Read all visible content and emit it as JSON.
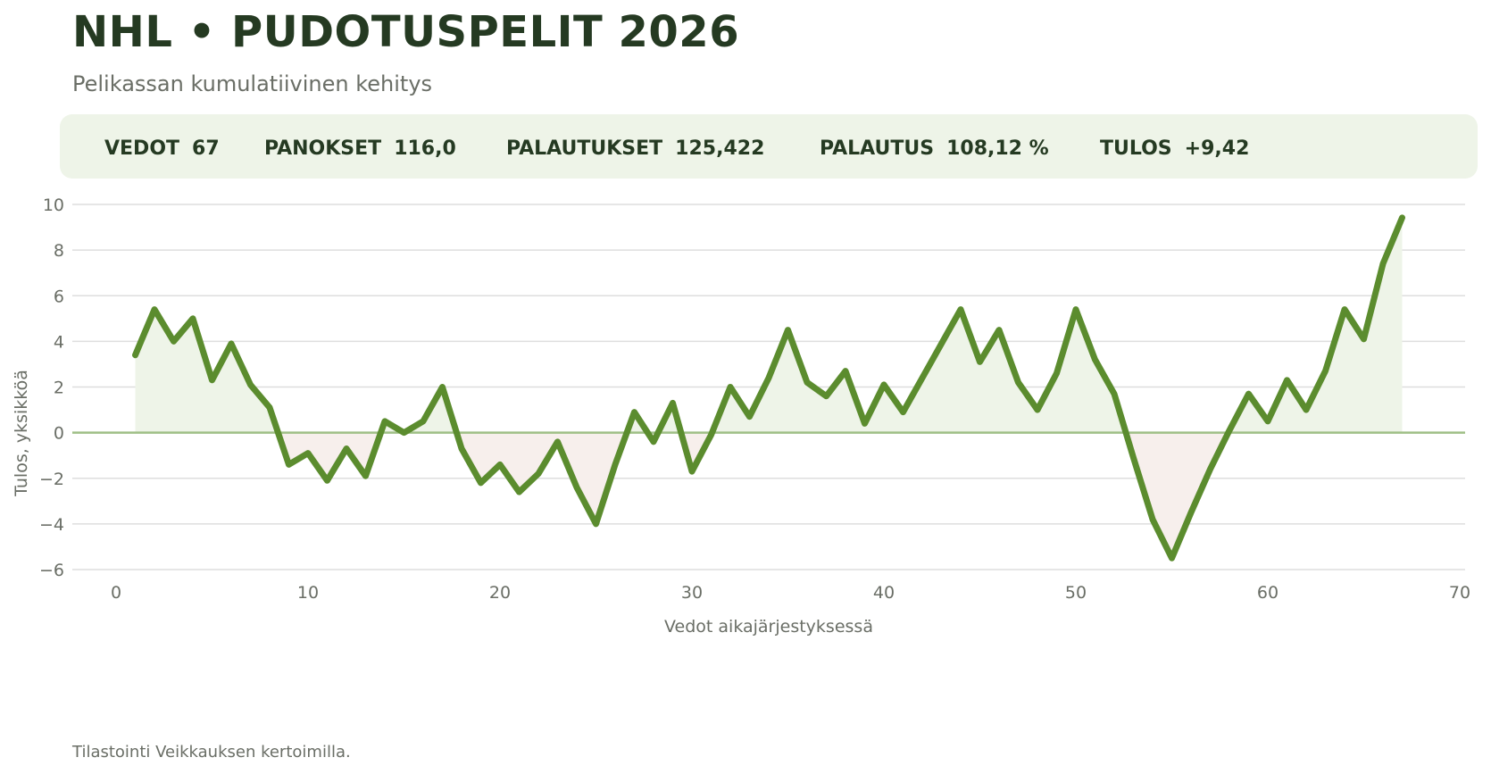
{
  "header": {
    "title": "NHL • PUDOTUSPELIT 2026",
    "subtitle": "Pelikassan kumulatiivinen kehitys"
  },
  "stats": [
    {
      "label": "VEDOT",
      "value": "67"
    },
    {
      "label": "PANOKSET",
      "value": "116,0"
    },
    {
      "label": "PALAUTUKSET",
      "value": "125,422"
    },
    {
      "label": "PALAUTUS",
      "value": "108,12 %"
    },
    {
      "label": "TULOS",
      "value": "+9,42"
    }
  ],
  "footer": {
    "note": "Tilastointi Veikkauksen kertoimilla."
  },
  "colors": {
    "line": "#5b8c2e",
    "positive_fill": "#eef4e8",
    "negative_fill": "#f7efec",
    "zero_line": "#9fbf86",
    "grid": "#dedede",
    "title": "#253a22",
    "muted": "#6a6e66"
  },
  "chart_data": {
    "type": "line",
    "xlabel": "Vedot aikajärjestyksessä",
    "ylabel": "Tulos, yksikköä",
    "xlim": [
      0,
      70
    ],
    "ylim": [
      -6,
      10
    ],
    "xticks": [
      0,
      10,
      20,
      30,
      40,
      50,
      60,
      70
    ],
    "yticks": [
      -6,
      -4,
      -2,
      0,
      2,
      4,
      6,
      8,
      10
    ],
    "grid": "horizontal",
    "series": [
      {
        "x": [
          1,
          2,
          3,
          4,
          5,
          6,
          7,
          8,
          9,
          10,
          11,
          12,
          13,
          14,
          15,
          16,
          17,
          18,
          19,
          20,
          21,
          22,
          23,
          24,
          25,
          26,
          27,
          28,
          29,
          30,
          31,
          32,
          33,
          34,
          35,
          36,
          37,
          38,
          39,
          40,
          41,
          42,
          43,
          44,
          45,
          46,
          47,
          48,
          49,
          50,
          51,
          52,
          53,
          54,
          55,
          56,
          57,
          58,
          59,
          60,
          61,
          62,
          63,
          64,
          65,
          66,
          67
        ],
        "values": [
          3.4,
          5.4,
          4.0,
          5.0,
          2.3,
          3.9,
          2.1,
          1.1,
          -1.4,
          -0.9,
          -2.1,
          -0.7,
          -1.9,
          0.5,
          0.0,
          0.5,
          2.0,
          -0.7,
          -2.2,
          -1.4,
          -2.6,
          -1.8,
          -0.4,
          -2.4,
          -4.0,
          -1.4,
          0.9,
          -0.4,
          1.3,
          -1.7,
          -0.1,
          2.0,
          0.7,
          2.4,
          4.5,
          2.2,
          1.6,
          2.7,
          0.4,
          2.1,
          0.9,
          2.4,
          3.9,
          5.4,
          3.1,
          4.5,
          2.2,
          1.0,
          2.6,
          5.4,
          3.2,
          1.7,
          -1.1,
          -3.8,
          -5.5,
          -3.5,
          -1.6,
          0.1,
          1.7,
          0.5,
          2.3,
          1.0,
          2.7,
          5.4,
          4.1,
          7.4,
          9.42
        ]
      }
    ]
  }
}
